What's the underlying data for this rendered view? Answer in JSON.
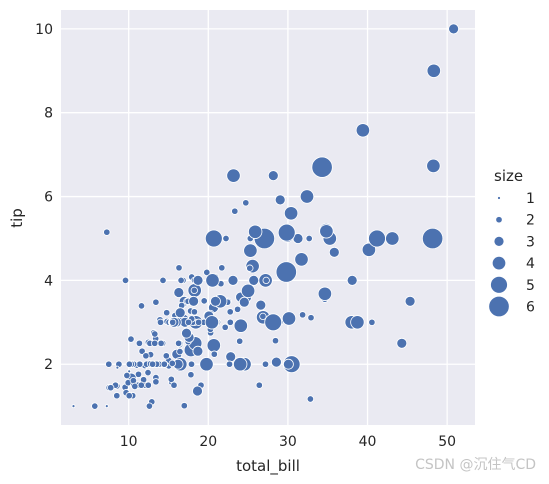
{
  "chart_data": {
    "type": "scatter",
    "xlabel": "total_bill",
    "ylabel": "tip",
    "xlim": [
      1.5,
      53.5
    ],
    "ylim": [
      0.55,
      10.45
    ],
    "xticks": [
      10,
      20,
      30,
      40,
      50
    ],
    "yticks": [
      2,
      4,
      6,
      8,
      10
    ],
    "grid": true,
    "point_color": "#4c72b0",
    "background_color": "#eaeaf2",
    "legend": {
      "title": "size",
      "placement": "right",
      "entries": [
        {
          "label": "1",
          "size": 1
        },
        {
          "label": "2",
          "size": 2
        },
        {
          "label": "3",
          "size": 3
        },
        {
          "label": "4",
          "size": 4
        },
        {
          "label": "5",
          "size": 5
        },
        {
          "label": "6",
          "size": 6
        }
      ]
    },
    "points": [
      [
        16.99,
        1.01,
        2
      ],
      [
        10.34,
        1.66,
        3
      ],
      [
        21.01,
        3.5,
        3
      ],
      [
        23.68,
        3.31,
        2
      ],
      [
        24.59,
        3.61,
        4
      ],
      [
        25.29,
        4.71,
        4
      ],
      [
        8.77,
        2.0,
        2
      ],
      [
        26.88,
        3.12,
        4
      ],
      [
        15.04,
        1.96,
        2
      ],
      [
        14.78,
        3.23,
        2
      ],
      [
        10.27,
        1.71,
        2
      ],
      [
        35.26,
        5.0,
        4
      ],
      [
        15.42,
        1.57,
        2
      ],
      [
        18.43,
        3.0,
        4
      ],
      [
        14.83,
        3.02,
        2
      ],
      [
        21.58,
        3.92,
        2
      ],
      [
        10.33,
        1.67,
        3
      ],
      [
        16.29,
        3.71,
        3
      ],
      [
        16.97,
        3.5,
        3
      ],
      [
        20.65,
        3.35,
        3
      ],
      [
        17.92,
        4.08,
        2
      ],
      [
        20.29,
        2.75,
        2
      ],
      [
        15.77,
        2.23,
        2
      ],
      [
        39.42,
        7.58,
        4
      ],
      [
        19.82,
        3.18,
        2
      ],
      [
        17.81,
        2.34,
        4
      ],
      [
        13.37,
        2.0,
        2
      ],
      [
        12.69,
        2.0,
        2
      ],
      [
        21.7,
        4.3,
        2
      ],
      [
        19.65,
        3.0,
        2
      ],
      [
        9.55,
        1.45,
        2
      ],
      [
        18.35,
        2.5,
        4
      ],
      [
        15.06,
        3.0,
        2
      ],
      [
        20.69,
        2.45,
        4
      ],
      [
        17.78,
        3.27,
        2
      ],
      [
        24.06,
        3.6,
        3
      ],
      [
        16.31,
        2.0,
        3
      ],
      [
        16.93,
        3.07,
        3
      ],
      [
        18.69,
        2.31,
        3
      ],
      [
        31.27,
        5.0,
        3
      ],
      [
        16.04,
        2.24,
        3
      ],
      [
        17.46,
        2.54,
        2
      ],
      [
        13.94,
        3.06,
        2
      ],
      [
        9.68,
        1.32,
        2
      ],
      [
        30.4,
        5.6,
        4
      ],
      [
        18.29,
        3.0,
        2
      ],
      [
        22.23,
        5.0,
        2
      ],
      [
        32.4,
        6.0,
        4
      ],
      [
        28.55,
        2.05,
        3
      ],
      [
        18.04,
        3.0,
        2
      ],
      [
        12.54,
        2.5,
        2
      ],
      [
        10.29,
        2.6,
        2
      ],
      [
        34.81,
        5.2,
        4
      ],
      [
        9.94,
        1.56,
        2
      ],
      [
        25.56,
        4.34,
        4
      ],
      [
        19.49,
        3.51,
        2
      ],
      [
        38.01,
        3.0,
        4
      ],
      [
        26.41,
        1.5,
        2
      ],
      [
        11.24,
        1.76,
        2
      ],
      [
        48.27,
        6.73,
        4
      ],
      [
        20.29,
        3.21,
        2
      ],
      [
        13.81,
        2.0,
        2
      ],
      [
        11.02,
        1.98,
        2
      ],
      [
        18.29,
        3.76,
        4
      ],
      [
        17.59,
        2.64,
        3
      ],
      [
        20.08,
        3.15,
        3
      ],
      [
        16.45,
        2.47,
        2
      ],
      [
        3.07,
        1.0,
        1
      ],
      [
        20.23,
        2.01,
        2
      ],
      [
        15.01,
        2.09,
        2
      ],
      [
        12.02,
        1.97,
        2
      ],
      [
        17.07,
        3.0,
        3
      ],
      [
        26.86,
        3.14,
        2
      ],
      [
        25.28,
        5.0,
        2
      ],
      [
        14.73,
        2.2,
        2
      ],
      [
        10.51,
        1.25,
        2
      ],
      [
        17.92,
        3.08,
        2
      ],
      [
        27.2,
        4.0,
        4
      ],
      [
        22.76,
        3.0,
        2
      ],
      [
        17.29,
        2.71,
        2
      ],
      [
        19.44,
        3.0,
        2
      ],
      [
        16.66,
        3.4,
        2
      ],
      [
        10.07,
        1.83,
        1
      ],
      [
        32.68,
        5.0,
        2
      ],
      [
        15.98,
        2.03,
        2
      ],
      [
        34.83,
        5.17,
        4
      ],
      [
        13.03,
        2.0,
        2
      ],
      [
        18.28,
        4.0,
        2
      ],
      [
        24.71,
        5.85,
        2
      ],
      [
        21.16,
        3.0,
        2
      ],
      [
        28.97,
        3.0,
        2
      ],
      [
        22.49,
        3.5,
        2
      ],
      [
        5.75,
        1.0,
        2
      ],
      [
        16.32,
        4.3,
        2
      ],
      [
        22.75,
        3.25,
        2
      ],
      [
        40.17,
        4.73,
        4
      ],
      [
        27.28,
        4.0,
        2
      ],
      [
        12.03,
        1.5,
        2
      ],
      [
        21.01,
        3.0,
        2
      ],
      [
        12.46,
        1.5,
        2
      ],
      [
        11.35,
        2.5,
        2
      ],
      [
        15.38,
        3.0,
        2
      ],
      [
        44.3,
        2.5,
        3
      ],
      [
        22.42,
        3.48,
        2
      ],
      [
        20.92,
        4.08,
        2
      ],
      [
        15.36,
        1.64,
        2
      ],
      [
        20.49,
        4.06,
        2
      ],
      [
        25.21,
        4.29,
        2
      ],
      [
        18.24,
        3.76,
        2
      ],
      [
        14.31,
        4.0,
        2
      ],
      [
        14.0,
        3.0,
        2
      ],
      [
        7.25,
        1.0,
        1
      ],
      [
        38.07,
        4.0,
        3
      ],
      [
        23.95,
        2.55,
        2
      ],
      [
        25.71,
        4.0,
        3
      ],
      [
        17.31,
        3.5,
        2
      ],
      [
        29.93,
        5.07,
        4
      ],
      [
        10.65,
        1.5,
        2
      ],
      [
        12.43,
        1.8,
        2
      ],
      [
        24.08,
        2.92,
        4
      ],
      [
        11.69,
        2.31,
        2
      ],
      [
        13.42,
        1.68,
        2
      ],
      [
        14.26,
        2.5,
        2
      ],
      [
        15.95,
        2.0,
        2
      ],
      [
        12.48,
        2.52,
        2
      ],
      [
        29.8,
        4.2,
        6
      ],
      [
        8.52,
        1.48,
        2
      ],
      [
        14.52,
        2.0,
        2
      ],
      [
        11.38,
        2.0,
        2
      ],
      [
        22.82,
        2.18,
        3
      ],
      [
        19.08,
        1.5,
        2
      ],
      [
        20.27,
        2.83,
        2
      ],
      [
        11.17,
        1.5,
        2
      ],
      [
        12.26,
        2.0,
        2
      ],
      [
        18.26,
        3.25,
        2
      ],
      [
        8.51,
        1.25,
        2
      ],
      [
        10.33,
        2.0,
        2
      ],
      [
        14.15,
        2.0,
        2
      ],
      [
        16.0,
        2.0,
        2
      ],
      [
        13.16,
        2.75,
        2
      ],
      [
        17.47,
        3.5,
        2
      ],
      [
        34.3,
        6.7,
        6
      ],
      [
        41.19,
        5.0,
        5
      ],
      [
        27.05,
        5.0,
        6
      ],
      [
        16.43,
        2.3,
        2
      ],
      [
        8.35,
        1.5,
        2
      ],
      [
        18.64,
        1.36,
        3
      ],
      [
        11.87,
        1.63,
        2
      ],
      [
        9.78,
        1.73,
        2
      ],
      [
        7.51,
        2.0,
        2
      ],
      [
        14.07,
        2.5,
        2
      ],
      [
        13.13,
        2.0,
        2
      ],
      [
        17.26,
        2.74,
        3
      ],
      [
        24.55,
        2.0,
        4
      ],
      [
        19.77,
        2.0,
        4
      ],
      [
        29.85,
        5.14,
        5
      ],
      [
        48.17,
        5.0,
        6
      ],
      [
        25.0,
        3.75,
        4
      ],
      [
        13.39,
        2.61,
        2
      ],
      [
        16.49,
        2.0,
        4
      ],
      [
        21.5,
        3.5,
        4
      ],
      [
        12.66,
        2.5,
        2
      ],
      [
        16.21,
        2.0,
        3
      ],
      [
        13.81,
        2.0,
        2
      ],
      [
        17.51,
        3.0,
        2
      ],
      [
        24.52,
        3.48,
        3
      ],
      [
        20.76,
        2.24,
        2
      ],
      [
        31.71,
        4.5,
        4
      ],
      [
        10.59,
        1.61,
        2
      ],
      [
        10.63,
        2.0,
        2
      ],
      [
        50.81,
        10.0,
        3
      ],
      [
        15.81,
        3.16,
        2
      ],
      [
        7.25,
        5.15,
        2
      ],
      [
        31.85,
        3.18,
        2
      ],
      [
        16.82,
        4.0,
        2
      ],
      [
        32.9,
        3.11,
        2
      ],
      [
        17.89,
        2.0,
        2
      ],
      [
        14.48,
        2.0,
        2
      ],
      [
        9.6,
        4.0,
        2
      ],
      [
        34.63,
        3.55,
        2
      ],
      [
        34.65,
        3.68,
        4
      ],
      [
        23.33,
        5.65,
        2
      ],
      [
        45.35,
        3.5,
        3
      ],
      [
        23.17,
        6.5,
        4
      ],
      [
        40.55,
        3.0,
        2
      ],
      [
        20.69,
        5.0,
        5
      ],
      [
        20.9,
        3.5,
        3
      ],
      [
        30.46,
        2.0,
        5
      ],
      [
        18.15,
        3.5,
        3
      ],
      [
        23.1,
        4.0,
        3
      ],
      [
        15.69,
        1.5,
        2
      ],
      [
        19.81,
        4.19,
        2
      ],
      [
        28.44,
        2.56,
        2
      ],
      [
        15.48,
        2.02,
        2
      ],
      [
        16.58,
        4.0,
        2
      ],
      [
        7.56,
        1.44,
        2
      ],
      [
        10.34,
        2.0,
        2
      ],
      [
        43.11,
        5.0,
        4
      ],
      [
        13.0,
        2.0,
        2
      ],
      [
        13.51,
        2.0,
        2
      ],
      [
        18.71,
        4.0,
        3
      ],
      [
        12.74,
        2.01,
        2
      ],
      [
        13.0,
        2.0,
        2
      ],
      [
        16.4,
        2.5,
        2
      ],
      [
        20.53,
        4.0,
        4
      ],
      [
        16.47,
        3.23,
        3
      ],
      [
        26.59,
        3.41,
        3
      ],
      [
        38.73,
        3.0,
        4
      ],
      [
        24.27,
        2.03,
        2
      ],
      [
        12.76,
        2.23,
        2
      ],
      [
        30.06,
        2.0,
        3
      ],
      [
        25.89,
        5.16,
        4
      ],
      [
        48.33,
        9.0,
        4
      ],
      [
        13.27,
        2.5,
        2
      ],
      [
        28.17,
        6.5,
        3
      ],
      [
        12.9,
        1.1,
        2
      ],
      [
        28.15,
        3.0,
        5
      ],
      [
        11.59,
        1.5,
        2
      ],
      [
        7.74,
        1.44,
        2
      ],
      [
        30.14,
        3.09,
        4
      ],
      [
        12.16,
        2.2,
        2
      ],
      [
        13.42,
        3.48,
        2
      ],
      [
        8.58,
        1.92,
        1
      ],
      [
        15.98,
        3.0,
        3
      ],
      [
        13.42,
        1.58,
        2
      ],
      [
        16.27,
        2.5,
        2
      ],
      [
        10.09,
        2.0,
        2
      ],
      [
        20.45,
        3.0,
        4
      ],
      [
        13.28,
        2.72,
        2
      ],
      [
        22.12,
        2.88,
        2
      ],
      [
        24.01,
        2.0,
        4
      ],
      [
        15.69,
        3.0,
        3
      ],
      [
        11.61,
        3.39,
        2
      ],
      [
        10.77,
        1.47,
        2
      ],
      [
        15.53,
        3.0,
        2
      ],
      [
        10.07,
        1.25,
        2
      ],
      [
        12.6,
        1.0,
        2
      ],
      [
        32.83,
        1.17,
        2
      ],
      [
        35.83,
        4.67,
        3
      ],
      [
        29.03,
        5.92,
        3
      ],
      [
        27.18,
        2.0,
        2
      ],
      [
        22.67,
        2.0,
        2
      ],
      [
        17.82,
        1.75,
        2
      ],
      [
        18.78,
        3.0,
        2
      ]
    ]
  },
  "watermark": "CSDN @沉住气CD"
}
